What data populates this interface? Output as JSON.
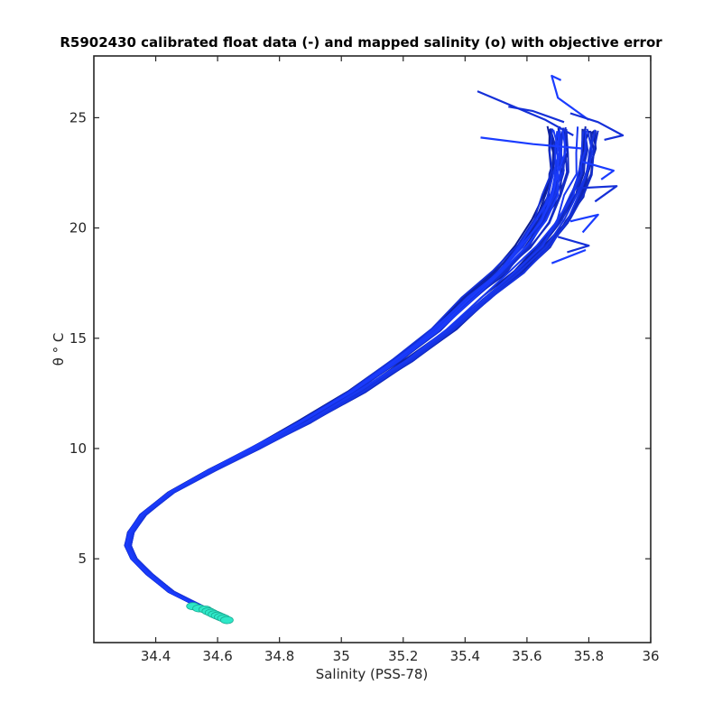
{
  "chart_data": {
    "type": "line",
    "title": "R5902430 calibrated float data (-) and mapped salinity (o) with objective error",
    "xlabel": "Salinity (PSS-78)",
    "ylabel": "θ ° C",
    "xlim": [
      34.2,
      36.0
    ],
    "ylim": [
      1.2,
      27.8
    ],
    "x_ticks": [
      34.4,
      34.6,
      34.8,
      35.0,
      35.2,
      35.4,
      35.6,
      35.8,
      36.0
    ],
    "x_tick_labels": [
      "34.4",
      "34.6",
      "34.8",
      "35",
      "35.2",
      "35.4",
      "35.6",
      "35.8",
      "36"
    ],
    "y_ticks": [
      5,
      10,
      15,
      20,
      25
    ],
    "y_tick_labels": [
      "5",
      "10",
      "15",
      "20",
      "25"
    ],
    "grid": false,
    "colors": {
      "line_dark": "#0a1a8c",
      "line_bright": "#1a3cff",
      "mapped": "#2ee8c8",
      "mapped_edge": "#1aa890"
    },
    "series": [
      {
        "kind": "profile_envelope",
        "n_profiles": 40,
        "x": [
          34.63,
          34.55,
          34.45,
          34.38,
          34.33,
          34.31,
          34.32,
          34.36,
          34.45,
          34.58,
          34.72,
          34.88,
          35.05,
          35.2,
          35.33,
          35.44,
          35.54,
          35.62,
          35.68,
          35.72,
          35.74,
          35.75,
          35.75
        ],
        "y": [
          2.2,
          2.8,
          3.5,
          4.3,
          5.0,
          5.6,
          6.2,
          7.0,
          8.0,
          9.0,
          10.0,
          11.2,
          12.6,
          14.0,
          15.4,
          16.8,
          18.0,
          19.2,
          20.3,
          21.5,
          22.5,
          23.5,
          24.5
        ],
        "spread": 0.03
      },
      {
        "kind": "surface_segments",
        "segments": [
          [
            [
              35.75,
              24.2
            ],
            [
              35.66,
              24.9
            ],
            [
              35.44,
              26.2
            ]
          ],
          [
            [
              35.78,
              23.6
            ],
            [
              35.62,
              23.8
            ],
            [
              35.45,
              24.1
            ]
          ],
          [
            [
              35.72,
              24.8
            ],
            [
              35.62,
              25.3
            ],
            [
              35.54,
              25.5
            ]
          ],
          [
            [
              35.8,
              24.9
            ],
            [
              35.7,
              25.9
            ],
            [
              35.68,
              26.9
            ],
            [
              35.71,
              26.7
            ]
          ],
          [
            [
              35.85,
              24.0
            ],
            [
              35.91,
              24.2
            ],
            [
              35.83,
              24.8
            ],
            [
              35.74,
              25.2
            ]
          ],
          [
            [
              35.78,
              23.0
            ],
            [
              35.88,
              22.6
            ],
            [
              35.84,
              22.2
            ]
          ],
          [
            [
              35.76,
              21.8
            ],
            [
              35.89,
              21.9
            ],
            [
              35.82,
              21.2
            ]
          ],
          [
            [
              35.74,
              20.3
            ],
            [
              35.83,
              20.6
            ],
            [
              35.78,
              19.8
            ]
          ],
          [
            [
              35.7,
              19.6
            ],
            [
              35.8,
              19.2
            ],
            [
              35.73,
              18.9
            ]
          ],
          [
            [
              35.68,
              18.4
            ],
            [
              35.79,
              19.0
            ]
          ]
        ]
      },
      {
        "kind": "mapped_salinity",
        "marker": "o",
        "x": [
          34.52,
          34.54,
          34.56,
          34.57,
          34.58,
          34.59,
          34.6,
          34.61,
          34.62,
          34.63
        ],
        "y": [
          2.85,
          2.75,
          2.7,
          2.62,
          2.55,
          2.48,
          2.42,
          2.36,
          2.3,
          2.22
        ]
      }
    ]
  }
}
